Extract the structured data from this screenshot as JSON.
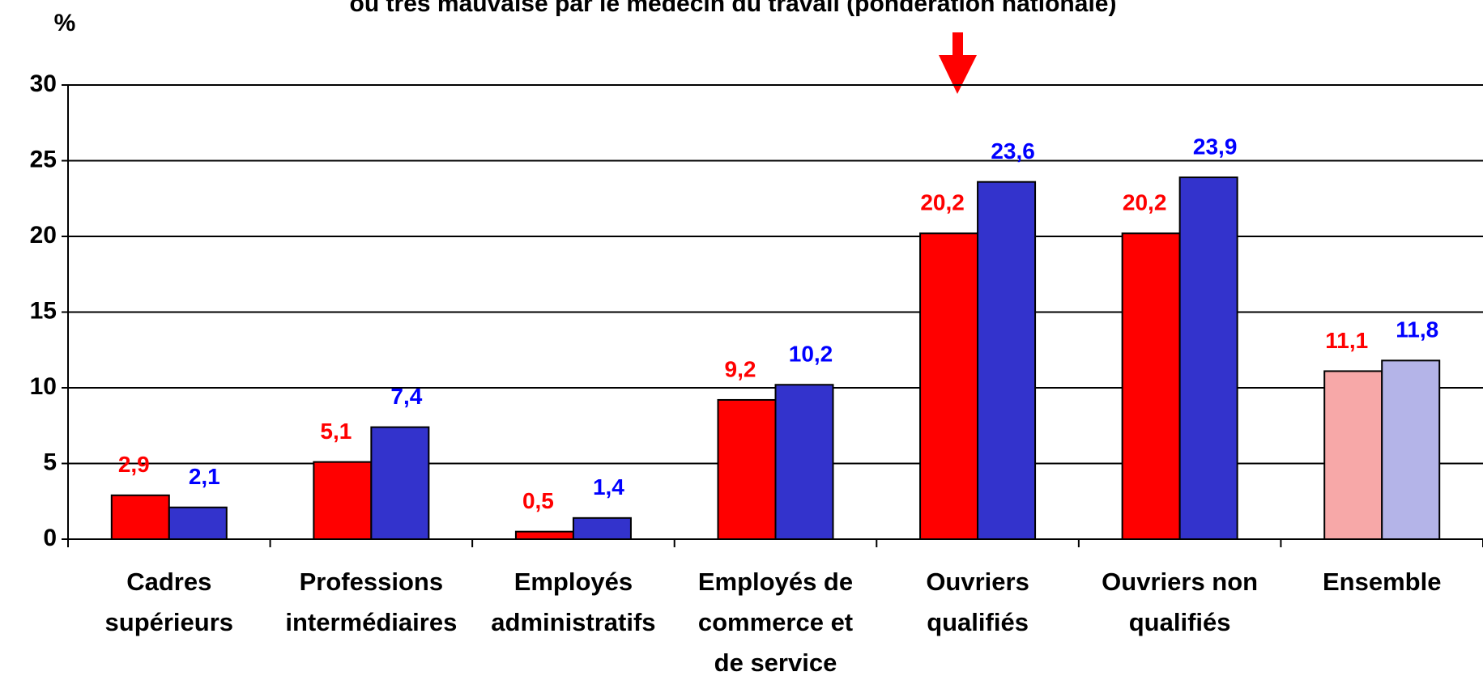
{
  "chart_data": {
    "type": "bar",
    "title": "ou très mauvaise par le médecin du travail (pondération nationale)",
    "ylabel": "%",
    "categories": [
      [
        "Cadres",
        "supérieurs"
      ],
      [
        "Professions",
        "intermédiaires"
      ],
      [
        "Employés",
        "administratifs"
      ],
      [
        "Employés de",
        "commerce et",
        "de service"
      ],
      [
        "Ouvriers",
        "qualifiés"
      ],
      [
        "Ouvriers non",
        "qualifiés"
      ],
      [
        "Ensemble"
      ]
    ],
    "series": [
      {
        "color": "#ff0000",
        "label_color": "#ff0000",
        "colors": [
          "#ff0000",
          "#ff0000",
          "#ff0000",
          "#ff0000",
          "#ff0000",
          "#ff0000",
          "#f7a8a8"
        ],
        "values": [
          2.9,
          5.1,
          0.5,
          9.2,
          20.2,
          20.2,
          11.1
        ],
        "value_labels": [
          "2,9",
          "5,1",
          "0,5",
          "9,2",
          "20,2",
          "20,2",
          "11,1"
        ]
      },
      {
        "color": "#3333cc",
        "label_color": "#0000ff",
        "colors": [
          "#3333cc",
          "#3333cc",
          "#3333cc",
          "#3333cc",
          "#3333cc",
          "#3333cc",
          "#b4b4e8"
        ],
        "values": [
          2.1,
          7.4,
          1.4,
          10.2,
          23.6,
          23.9,
          11.8
        ],
        "value_labels": [
          "2,1",
          "7,4",
          "1,4",
          "10,2",
          "23,6",
          "23,9",
          "11,8"
        ]
      }
    ],
    "ylim": [
      0,
      30
    ],
    "yticks": [
      0,
      5,
      10,
      15,
      20,
      25,
      30
    ],
    "grid": true
  }
}
